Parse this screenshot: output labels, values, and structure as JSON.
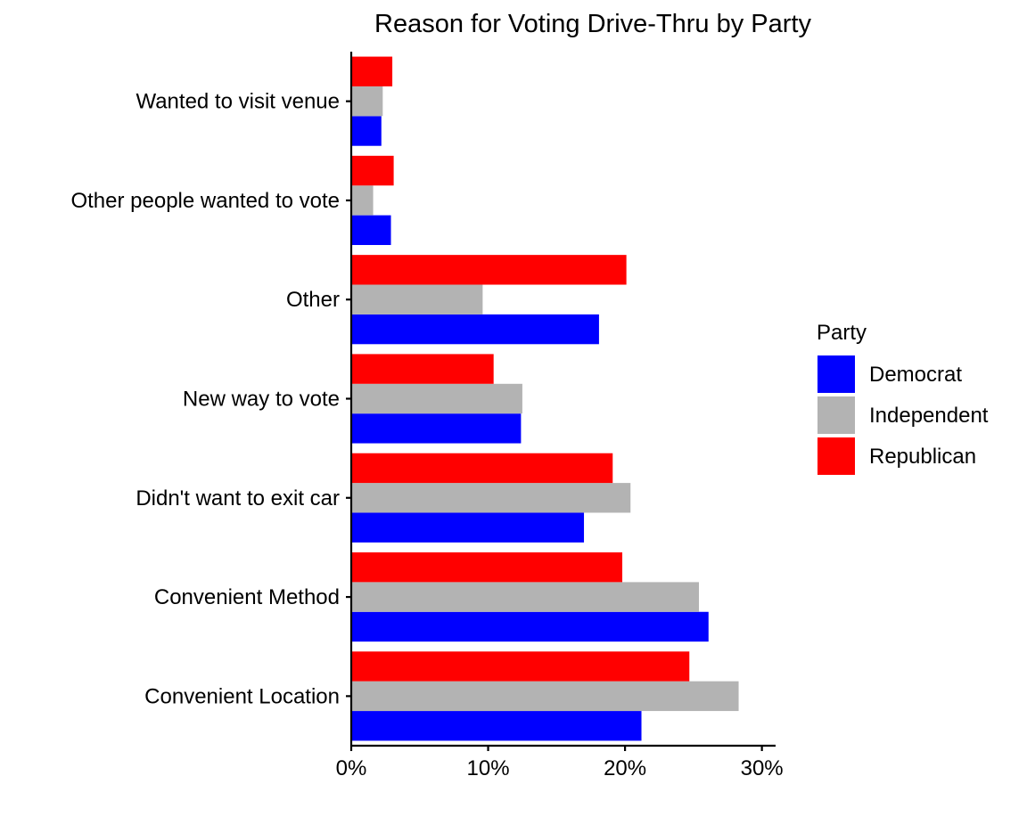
{
  "chart_data": {
    "type": "bar",
    "orientation": "horizontal",
    "title": "Reason for Voting Drive-Thru by Party",
    "xlabel": "",
    "ylabel": "",
    "xlim": [
      0,
      0.31
    ],
    "x_ticks": [
      {
        "value": 0,
        "label": "0%"
      },
      {
        "value": 0.1,
        "label": "10%"
      },
      {
        "value": 0.2,
        "label": "20%"
      },
      {
        "value": 0.3,
        "label": "30%"
      }
    ],
    "categories": [
      "Convenient Location",
      "Convenient Method",
      "Didn't want to exit car",
      "New way to vote",
      "Other",
      "Other people wanted to vote",
      "Wanted to visit venue"
    ],
    "series": [
      {
        "name": "Democrat",
        "color": "#0000ff",
        "values": [
          0.212,
          0.261,
          0.17,
          0.124,
          0.181,
          0.029,
          0.022
        ]
      },
      {
        "name": "Independent",
        "color": "#b3b3b3",
        "values": [
          0.283,
          0.254,
          0.204,
          0.125,
          0.096,
          0.016,
          0.023
        ]
      },
      {
        "name": "Republican",
        "color": "#ff0000",
        "values": [
          0.247,
          0.198,
          0.191,
          0.104,
          0.201,
          0.031,
          0.03
        ]
      }
    ],
    "legend": {
      "title": "Party",
      "position": "right"
    },
    "grid": false
  }
}
